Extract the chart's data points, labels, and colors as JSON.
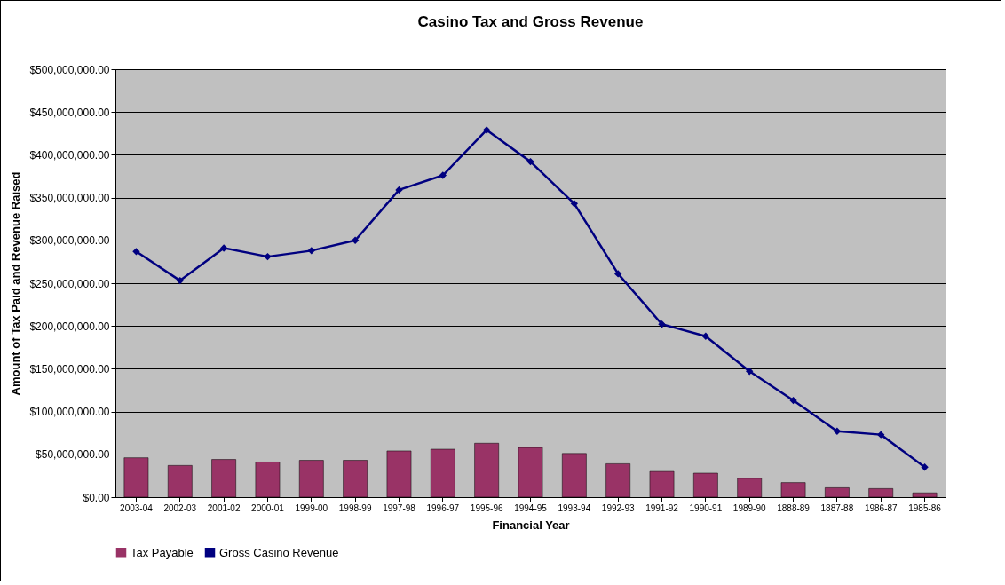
{
  "chart_data": {
    "type": "bar",
    "title": "Casino Tax and Gross Revenue",
    "xlabel": "Financial Year",
    "ylabel": "Amount of Tax Paid and Revenue Raised",
    "categories": [
      "2003-04",
      "2002-03",
      "2001-02",
      "2000-01",
      "1999-00",
      "1998-99",
      "1997-98",
      "1996-97",
      "1995-96",
      "1994-95",
      "1993-94",
      "1992-93",
      "1991-92",
      "1990-91",
      "1989-90",
      "1888-89",
      "1887-88",
      "1986-87",
      "1985-86"
    ],
    "series": [
      {
        "name": "Tax Payable",
        "color": "#993366",
        "values": [
          46000000,
          37000000,
          44000000,
          41000000,
          43000000,
          43000000,
          54000000,
          56000000,
          63000000,
          58000000,
          51000000,
          39000000,
          30000000,
          28000000,
          22000000,
          17000000,
          11000000,
          10000000,
          5000000
        ]
      },
      {
        "name": "Gross Casino Revenue",
        "type": "line",
        "color": "#000080",
        "values": [
          287000000,
          253000000,
          291000000,
          281000000,
          288000000,
          300000000,
          359000000,
          376000000,
          429000000,
          392000000,
          343000000,
          261000000,
          202000000,
          188000000,
          147000000,
          113000000,
          77000000,
          73000000,
          35000000
        ]
      }
    ],
    "ylim": [
      0,
      500000000
    ],
    "yticks": [
      {
        "value": 0,
        "label": "$0.00"
      },
      {
        "value": 50000000,
        "label": "$50,000,000.00"
      },
      {
        "value": 100000000,
        "label": "$100,000,000.00"
      },
      {
        "value": 150000000,
        "label": "$150,000,000.00"
      },
      {
        "value": 200000000,
        "label": "$200,000,000.00"
      },
      {
        "value": 250000000,
        "label": "$250,000,000.00"
      },
      {
        "value": 300000000,
        "label": "$300,000,000.00"
      },
      {
        "value": 350000000,
        "label": "$350,000,000.00"
      },
      {
        "value": 400000000,
        "label": "$400,000,000.00"
      },
      {
        "value": 450000000,
        "label": "$450,000,000.00"
      },
      {
        "value": 500000000,
        "label": "$500,000,000.00"
      }
    ],
    "grid": "y",
    "legend": "bottom",
    "marker": "diamond",
    "line_style": "solid"
  }
}
